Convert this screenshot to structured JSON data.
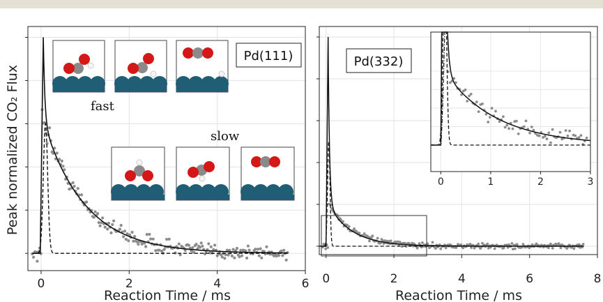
{
  "chart_data": [
    {
      "type": "scatter",
      "title": "Pd(111)",
      "xlabel": "Reaction Time / ms",
      "ylabel": "Peak normalized CO₂ Flux",
      "xlim": [
        -0.3,
        6.0
      ],
      "ylim": [
        -0.08,
        1.05
      ],
      "xticks": [
        0,
        2,
        4,
        6
      ],
      "grid": true,
      "annotations": [
        "fast",
        "slow"
      ],
      "series": [
        {
          "style": "solid-line",
          "peak_x": 0.05,
          "peak_y": 1.0,
          "decay_ms": 0.95
        },
        {
          "style": "dashed-line",
          "peak_x": 0.1,
          "peak_y": 0.6,
          "width_ms": 0.07
        },
        {
          "style": "scatter-points",
          "x_range": [
            -0.2,
            5.6
          ]
        }
      ]
    },
    {
      "type": "scatter",
      "title": "Pd(332)",
      "xlabel": "Reaction Time / ms",
      "ylabel": "",
      "xlim": [
        -0.2,
        8.0
      ],
      "ylim": [
        -0.04,
        1.05
      ],
      "xticks": [
        0,
        2,
        4,
        6,
        8
      ],
      "grid": true,
      "series": [
        {
          "style": "solid-line",
          "peak_x": 0.05,
          "peak_y": 1.0,
          "decay_ms": 0.6
        },
        {
          "style": "dashed-line",
          "peak_x": 0.08,
          "peak_y": 0.5,
          "width_ms": 0.05
        },
        {
          "style": "dashdot-line",
          "peak_x": 0.1,
          "peak_y": 0.55
        },
        {
          "style": "scatter-points",
          "x_range": [
            -0.1,
            7.6
          ]
        }
      ],
      "inset": {
        "xlim": [
          -0.2,
          3.0
        ],
        "xticks": [
          0,
          1,
          2,
          3
        ],
        "zoom_region_x": [
          -0.1,
          2.9
        ]
      }
    }
  ]
}
